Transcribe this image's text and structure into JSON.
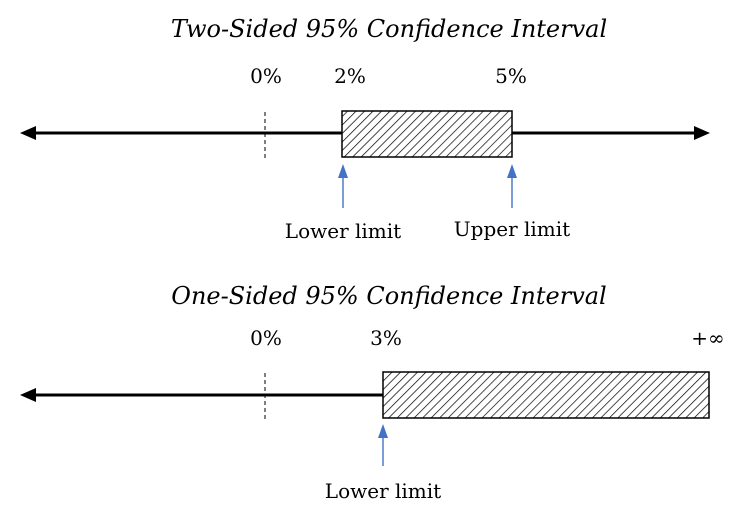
{
  "colors": {
    "axis": "#000000",
    "box_fill": "#ffffff",
    "hatch": "#000000",
    "pointer_arrow": "#4472c4",
    "background": "#ffffff"
  },
  "diagrams": [
    {
      "title": "Two-Sided 95% Confidence Interval",
      "ticks": [
        "0%",
        "2%",
        "5%"
      ],
      "interval": {
        "lower": "2%",
        "upper": "5%"
      },
      "pointer_labels": [
        "Lower limit",
        "Upper limit"
      ]
    },
    {
      "title": "One-Sided 95% Confidence Interval",
      "ticks": [
        "0%",
        "3%",
        "+∞"
      ],
      "interval": {
        "lower": "3%",
        "upper": "+∞"
      },
      "pointer_labels": [
        "Lower limit"
      ]
    }
  ]
}
